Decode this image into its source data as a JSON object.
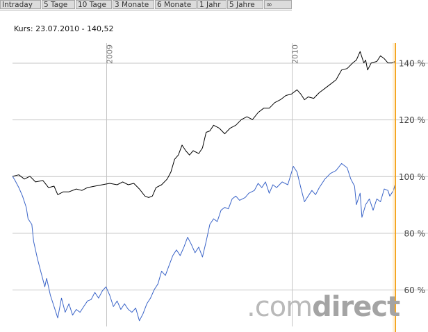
{
  "tabs": [
    {
      "label": "Intraday"
    },
    {
      "label": "5 Tage"
    },
    {
      "label": "10 Tage"
    },
    {
      "label": "3 Monate"
    },
    {
      "label": "6 Monate"
    },
    {
      "label": "1 Jahr"
    },
    {
      "label": "5 Jahre"
    },
    {
      "label": "∞"
    }
  ],
  "kurs_text": "Kurs: 23.07.2010 - 140,52",
  "watermark": {
    "part1": ".com",
    "part2": "direct"
  },
  "chart_data": {
    "type": "line",
    "x_range": [
      2008.496,
      2010.56
    ],
    "year_labels": [
      "2009",
      "2010"
    ],
    "year_positions": [
      2009.0,
      2010.0
    ],
    "ylim": [
      47,
      147
    ],
    "ytick_values": [
      60,
      80,
      100,
      120,
      140
    ],
    "ytick_labels": [
      "60 %",
      "80 %",
      "100 %",
      "120 %",
      "140 %"
    ],
    "current_marker_color": "#f5a623",
    "series": [
      {
        "color": "#000000",
        "points": [
          [
            2008.496,
            100.0
          ],
          [
            2008.53,
            100.5
          ],
          [
            2008.56,
            99.0
          ],
          [
            2008.59,
            100.0
          ],
          [
            2008.62,
            98.0
          ],
          [
            2008.66,
            98.5
          ],
          [
            2008.69,
            96.0
          ],
          [
            2008.72,
            96.5
          ],
          [
            2008.74,
            93.5
          ],
          [
            2008.77,
            94.5
          ],
          [
            2008.8,
            94.5
          ],
          [
            2008.84,
            95.5
          ],
          [
            2008.87,
            95.0
          ],
          [
            2008.9,
            96.0
          ],
          [
            2008.94,
            96.5
          ],
          [
            2008.98,
            97.0
          ],
          [
            2009.02,
            97.5
          ],
          [
            2009.06,
            97.0
          ],
          [
            2009.09,
            98.0
          ],
          [
            2009.12,
            97.0
          ],
          [
            2009.15,
            97.5
          ],
          [
            2009.18,
            95.5
          ],
          [
            2009.21,
            93.0
          ],
          [
            2009.23,
            92.5
          ],
          [
            2009.25,
            93.0
          ],
          [
            2009.27,
            96.0
          ],
          [
            2009.3,
            97.0
          ],
          [
            2009.33,
            99.0
          ],
          [
            2009.35,
            101.5
          ],
          [
            2009.37,
            106.0
          ],
          [
            2009.39,
            107.5
          ],
          [
            2009.41,
            111.0
          ],
          [
            2009.43,
            109.0
          ],
          [
            2009.45,
            107.5
          ],
          [
            2009.47,
            109.0
          ],
          [
            2009.5,
            108.0
          ],
          [
            2009.52,
            110.0
          ],
          [
            2009.54,
            115.5
          ],
          [
            2009.56,
            116.0
          ],
          [
            2009.58,
            118.0
          ],
          [
            2009.61,
            117.0
          ],
          [
            2009.64,
            115.0
          ],
          [
            2009.67,
            117.0
          ],
          [
            2009.7,
            118.0
          ],
          [
            2009.73,
            120.0
          ],
          [
            2009.76,
            121.0
          ],
          [
            2009.79,
            120.0
          ],
          [
            2009.82,
            122.5
          ],
          [
            2009.85,
            124.0
          ],
          [
            2009.88,
            124.0
          ],
          [
            2009.91,
            126.0
          ],
          [
            2009.94,
            127.0
          ],
          [
            2009.97,
            128.5
          ],
          [
            2010.0,
            129.0
          ],
          [
            2010.03,
            130.5
          ],
          [
            2010.05,
            129.0
          ],
          [
            2010.07,
            127.0
          ],
          [
            2010.09,
            128.0
          ],
          [
            2010.12,
            127.5
          ],
          [
            2010.15,
            129.5
          ],
          [
            2010.18,
            131.0
          ],
          [
            2010.21,
            132.5
          ],
          [
            2010.24,
            134.0
          ],
          [
            2010.27,
            137.5
          ],
          [
            2010.3,
            138.0
          ],
          [
            2010.33,
            140.0
          ],
          [
            2010.35,
            141.0
          ],
          [
            2010.37,
            144.0
          ],
          [
            2010.39,
            140.0
          ],
          [
            2010.4,
            141.0
          ],
          [
            2010.41,
            137.5
          ],
          [
            2010.43,
            140.0
          ],
          [
            2010.46,
            140.5
          ],
          [
            2010.48,
            142.5
          ],
          [
            2010.5,
            141.5
          ],
          [
            2010.52,
            140.0
          ],
          [
            2010.54,
            140.0
          ],
          [
            2010.56,
            140.5
          ]
        ]
      },
      {
        "color": "#3a64c8",
        "points": [
          [
            2008.496,
            100.0
          ],
          [
            2008.51,
            98.5
          ],
          [
            2008.53,
            96.0
          ],
          [
            2008.55,
            93.0
          ],
          [
            2008.57,
            89.0
          ],
          [
            2008.58,
            85.0
          ],
          [
            2008.6,
            83.0
          ],
          [
            2008.61,
            77.0
          ],
          [
            2008.62,
            74.0
          ],
          [
            2008.63,
            71.0
          ],
          [
            2008.65,
            66.0
          ],
          [
            2008.67,
            61.0
          ],
          [
            2008.68,
            64.0
          ],
          [
            2008.7,
            58.0
          ],
          [
            2008.72,
            54.0
          ],
          [
            2008.74,
            50.0
          ],
          [
            2008.76,
            57.0
          ],
          [
            2008.78,
            52.0
          ],
          [
            2008.8,
            55.0
          ],
          [
            2008.82,
            51.0
          ],
          [
            2008.84,
            53.0
          ],
          [
            2008.86,
            52.0
          ],
          [
            2008.88,
            54.0
          ],
          [
            2008.9,
            56.0
          ],
          [
            2008.92,
            56.5
          ],
          [
            2008.94,
            59.0
          ],
          [
            2008.96,
            57.0
          ],
          [
            2008.98,
            59.5
          ],
          [
            2009.0,
            61.0
          ],
          [
            2009.02,
            58.0
          ],
          [
            2009.04,
            54.0
          ],
          [
            2009.06,
            56.0
          ],
          [
            2009.08,
            53.0
          ],
          [
            2009.1,
            55.0
          ],
          [
            2009.12,
            53.0
          ],
          [
            2009.14,
            52.0
          ],
          [
            2009.16,
            53.5
          ],
          [
            2009.18,
            49.0
          ],
          [
            2009.2,
            51.5
          ],
          [
            2009.22,
            55.0
          ],
          [
            2009.24,
            57.0
          ],
          [
            2009.26,
            60.0
          ],
          [
            2009.28,
            62.0
          ],
          [
            2009.3,
            66.5
          ],
          [
            2009.32,
            65.0
          ],
          [
            2009.34,
            68.5
          ],
          [
            2009.36,
            72.0
          ],
          [
            2009.38,
            74.0
          ],
          [
            2009.4,
            72.0
          ],
          [
            2009.42,
            75.0
          ],
          [
            2009.44,
            78.5
          ],
          [
            2009.46,
            76.0
          ],
          [
            2009.48,
            73.0
          ],
          [
            2009.5,
            75.0
          ],
          [
            2009.52,
            71.5
          ],
          [
            2009.54,
            77.0
          ],
          [
            2009.56,
            83.0
          ],
          [
            2009.58,
            85.0
          ],
          [
            2009.6,
            84.0
          ],
          [
            2009.62,
            88.0
          ],
          [
            2009.64,
            89.0
          ],
          [
            2009.66,
            88.5
          ],
          [
            2009.68,
            92.0
          ],
          [
            2009.7,
            93.0
          ],
          [
            2009.72,
            91.5
          ],
          [
            2009.75,
            92.5
          ],
          [
            2009.77,
            94.0
          ],
          [
            2009.8,
            95.0
          ],
          [
            2009.82,
            97.5
          ],
          [
            2009.84,
            96.0
          ],
          [
            2009.86,
            98.0
          ],
          [
            2009.88,
            94.0
          ],
          [
            2009.9,
            97.0
          ],
          [
            2009.92,
            96.0
          ],
          [
            2009.95,
            98.0
          ],
          [
            2009.98,
            97.0
          ],
          [
            2010.01,
            103.5
          ],
          [
            2010.03,
            101.5
          ],
          [
            2010.05,
            96.0
          ],
          [
            2010.07,
            91.0
          ],
          [
            2010.09,
            93.0
          ],
          [
            2010.11,
            95.0
          ],
          [
            2010.13,
            93.5
          ],
          [
            2010.15,
            96.0
          ],
          [
            2010.18,
            99.0
          ],
          [
            2010.21,
            101.0
          ],
          [
            2010.24,
            102.0
          ],
          [
            2010.27,
            104.5
          ],
          [
            2010.3,
            103.0
          ],
          [
            2010.32,
            99.0
          ],
          [
            2010.34,
            96.5
          ],
          [
            2010.35,
            90.0
          ],
          [
            2010.37,
            94.0
          ],
          [
            2010.38,
            85.5
          ],
          [
            2010.4,
            90.0
          ],
          [
            2010.42,
            92.0
          ],
          [
            2010.44,
            88.0
          ],
          [
            2010.46,
            92.0
          ],
          [
            2010.48,
            91.0
          ],
          [
            2010.5,
            95.5
          ],
          [
            2010.52,
            95.0
          ],
          [
            2010.53,
            93.0
          ],
          [
            2010.55,
            95.0
          ],
          [
            2010.56,
            97.5
          ]
        ]
      }
    ]
  }
}
